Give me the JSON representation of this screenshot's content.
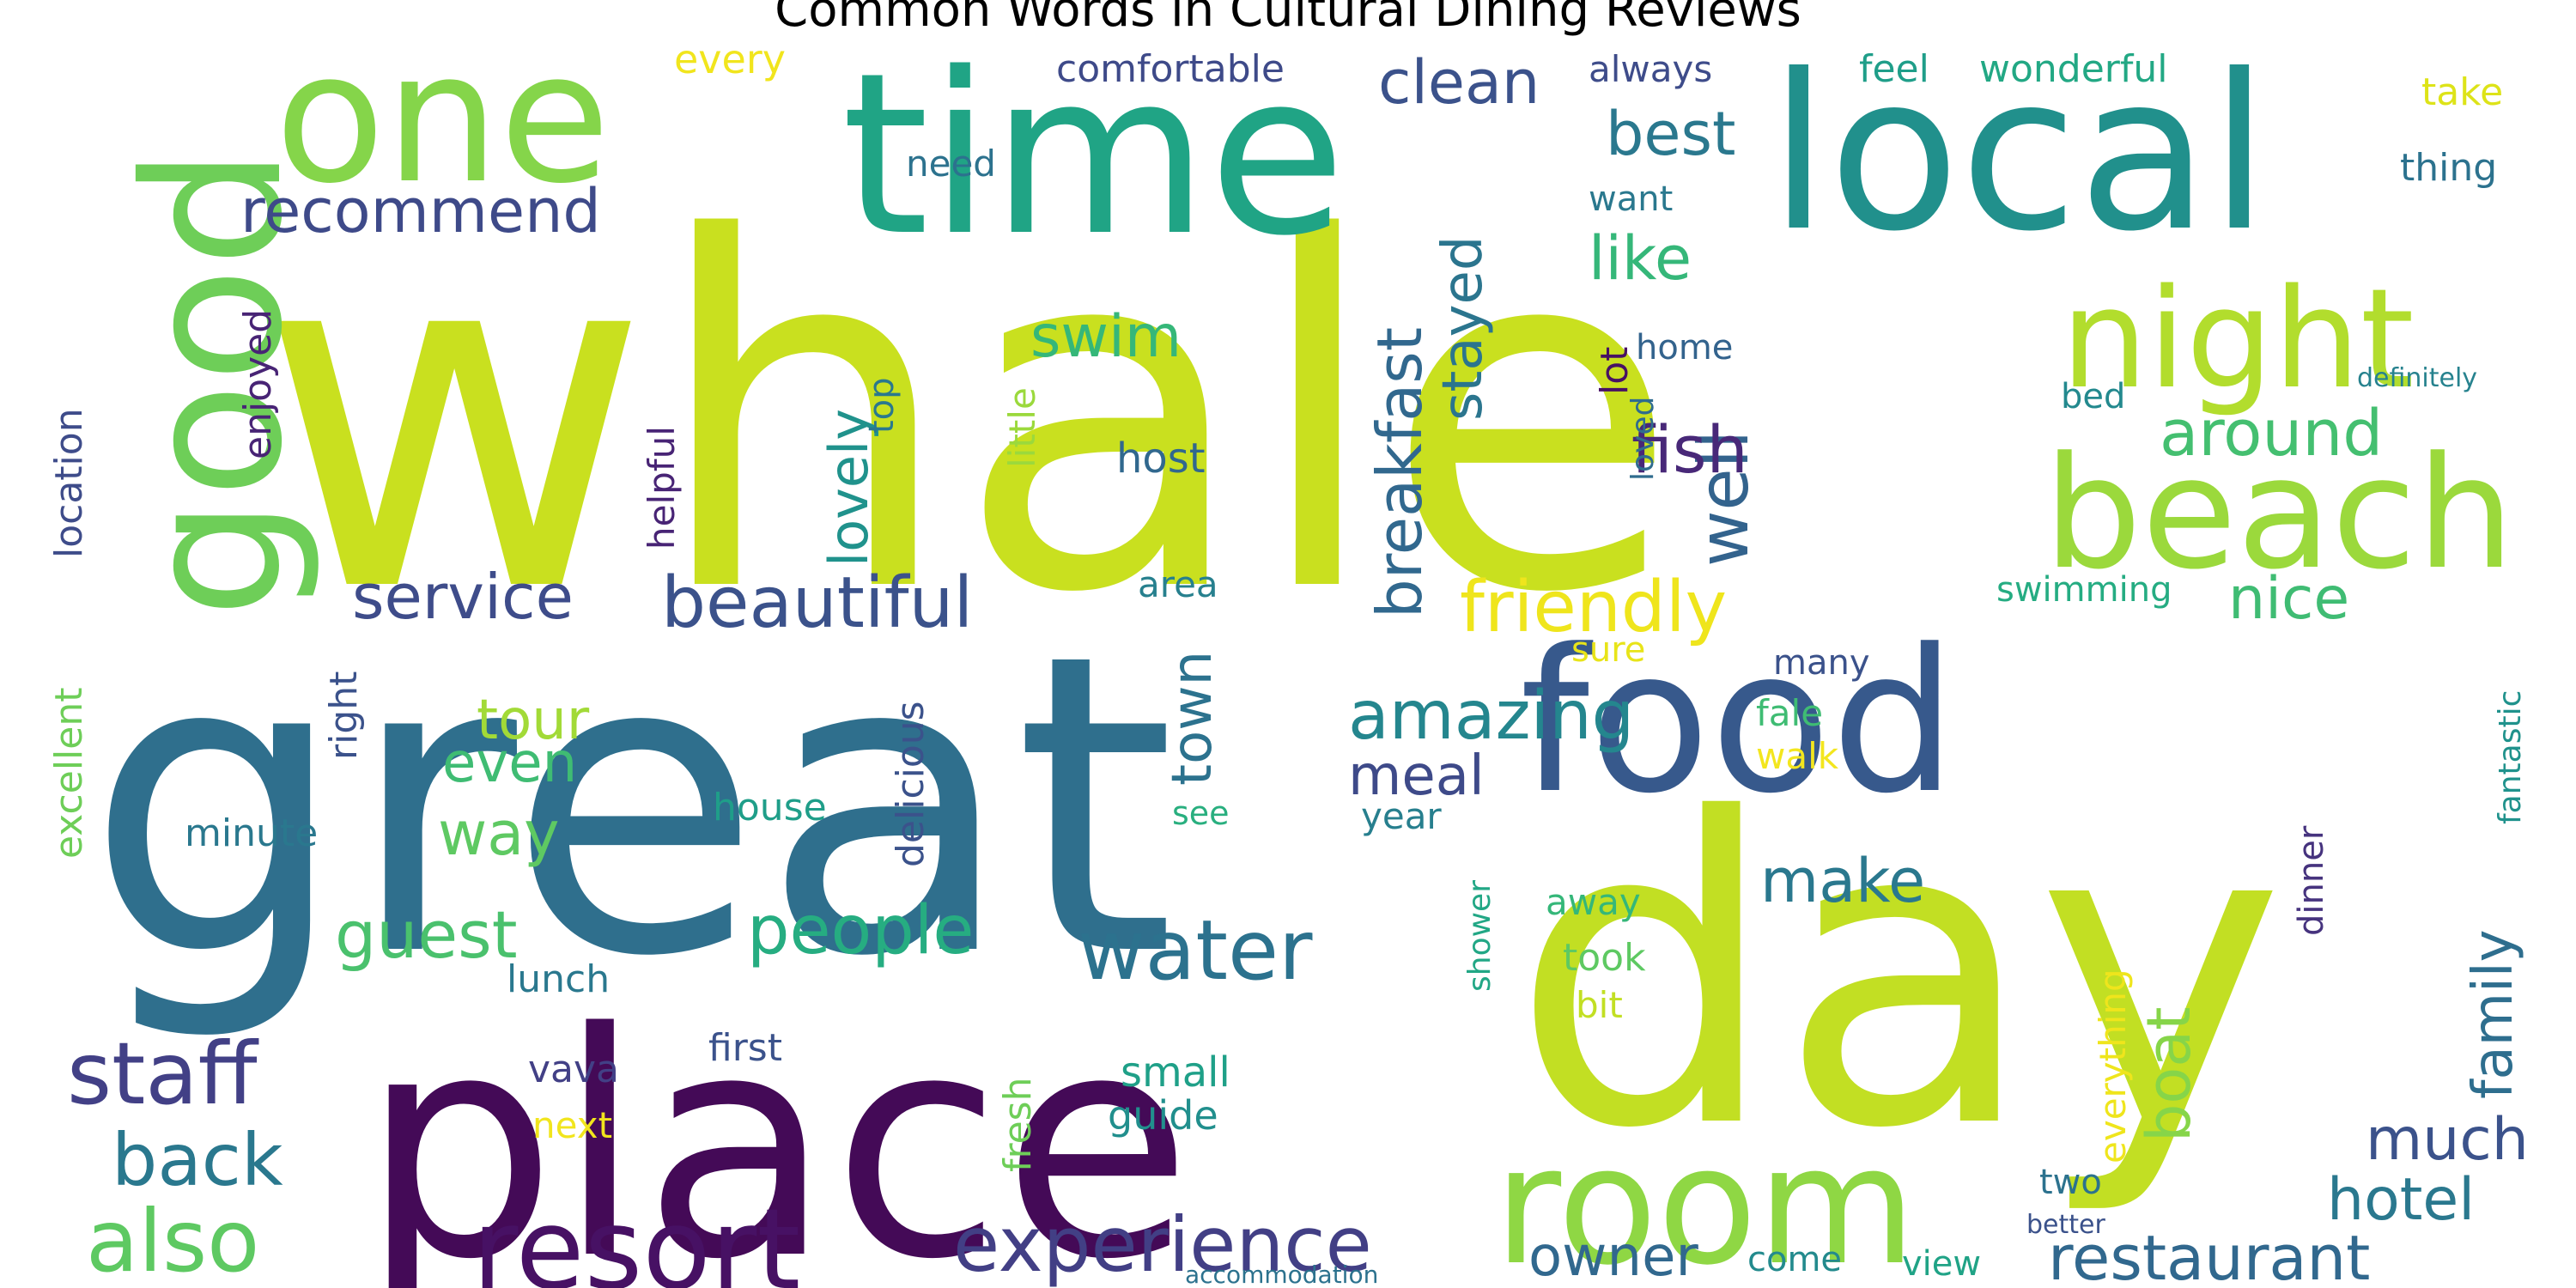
{
  "chart_data": {
    "type": "wordcloud",
    "title": "Common Words in Cultural Dining Reviews",
    "words": [
      {
        "text": "whale",
        "color": "#c9e01f"
      },
      {
        "text": "great",
        "color": "#2f6f8d"
      },
      {
        "text": "day",
        "color": "#c2df23"
      },
      {
        "text": "place",
        "color": "#440a57"
      },
      {
        "text": "time",
        "color": "#20a485"
      },
      {
        "text": "local",
        "color": "#21908c"
      },
      {
        "text": "food",
        "color": "#37598c"
      },
      {
        "text": "one",
        "color": "#85d54a"
      },
      {
        "text": "good",
        "color": "#6ece58"
      },
      {
        "text": "room",
        "color": "#8fd744"
      },
      {
        "text": "beach",
        "color": "#9bd93c"
      },
      {
        "text": "night",
        "color": "#b2dd2d"
      },
      {
        "text": "resort",
        "color": "#471164"
      },
      {
        "text": "experience",
        "color": "#423f85"
      },
      {
        "text": "friendly",
        "color": "#efe51c"
      },
      {
        "text": "beautiful",
        "color": "#3b528b"
      },
      {
        "text": "staff",
        "color": "#424086"
      },
      {
        "text": "water",
        "color": "#2c728e"
      },
      {
        "text": "people",
        "color": "#26ad81"
      },
      {
        "text": "restaurant",
        "color": "#31688e"
      },
      {
        "text": "also",
        "color": "#5ec962"
      },
      {
        "text": "back",
        "color": "#2a788e"
      },
      {
        "text": "breakfast",
        "color": "#31688e"
      },
      {
        "text": "amazing",
        "color": "#24868e"
      },
      {
        "text": "recommend",
        "color": "#3e4a89"
      },
      {
        "text": "service",
        "color": "#3e4c8a"
      },
      {
        "text": "clean",
        "color": "#3b528b"
      },
      {
        "text": "best",
        "color": "#2a788e"
      },
      {
        "text": "like",
        "color": "#35b779"
      },
      {
        "text": "well",
        "color": "#33638d"
      },
      {
        "text": "fish",
        "color": "#482878"
      },
      {
        "text": "around",
        "color": "#44bf70"
      },
      {
        "text": "nice",
        "color": "#3fbc73"
      },
      {
        "text": "family",
        "color": "#2e6e8e"
      },
      {
        "text": "stayed",
        "color": "#2b758e"
      },
      {
        "text": "lovely",
        "color": "#20928c"
      },
      {
        "text": "swim",
        "color": "#35b779"
      },
      {
        "text": "town",
        "color": "#2c728e"
      },
      {
        "text": "meal",
        "color": "#3e4a89"
      },
      {
        "text": "make",
        "color": "#2a788e"
      },
      {
        "text": "much",
        "color": "#3b528b"
      },
      {
        "text": "hotel",
        "color": "#2a788e"
      },
      {
        "text": "boat",
        "color": "#86d549"
      },
      {
        "text": "guest",
        "color": "#4ac16d"
      },
      {
        "text": "way",
        "color": "#5ec962"
      },
      {
        "text": "even",
        "color": "#3fbc73"
      },
      {
        "text": "tour",
        "color": "#a2da37"
      },
      {
        "text": "owner",
        "color": "#31688e"
      },
      {
        "text": "enjoyed",
        "color": "#482475"
      },
      {
        "text": "location",
        "color": "#3e4c8a"
      },
      {
        "text": "excellent",
        "color": "#6ece58"
      },
      {
        "text": "helpful",
        "color": "#482475"
      },
      {
        "text": "right",
        "color": "#3b528b"
      },
      {
        "text": "minute",
        "color": "#2a788e"
      },
      {
        "text": "house",
        "color": "#1f9e89"
      },
      {
        "text": "delicious",
        "color": "#3b528b"
      },
      {
        "text": "see",
        "color": "#29af7f"
      },
      {
        "text": "year",
        "color": "#277f8e"
      },
      {
        "text": "area",
        "color": "#27808e"
      },
      {
        "text": "host",
        "color": "#31688e"
      },
      {
        "text": "little",
        "color": "#9bd93c"
      },
      {
        "text": "top",
        "color": "#2a788e"
      },
      {
        "text": "need",
        "color": "#2c728e"
      },
      {
        "text": "comfortable",
        "color": "#3e4a89"
      },
      {
        "text": "every",
        "color": "#f1e51d"
      },
      {
        "text": "always",
        "color": "#3e4c8a"
      },
      {
        "text": "want",
        "color": "#2a788e"
      },
      {
        "text": "lot",
        "color": "#471164"
      },
      {
        "text": "home",
        "color": "#33638d"
      },
      {
        "text": "loved",
        "color": "#2f6c8e"
      },
      {
        "text": "feel",
        "color": "#1f9e89"
      },
      {
        "text": "wonderful",
        "color": "#22a884"
      },
      {
        "text": "take",
        "color": "#dde318"
      },
      {
        "text": "thing",
        "color": "#2c728e"
      },
      {
        "text": "bed",
        "color": "#23898e"
      },
      {
        "text": "definitely",
        "color": "#26828e"
      },
      {
        "text": "swimming",
        "color": "#25ac82"
      },
      {
        "text": "fantastic",
        "color": "#20928c"
      },
      {
        "text": "sure",
        "color": "#e8e419"
      },
      {
        "text": "fale",
        "color": "#3fbc73"
      },
      {
        "text": "walk",
        "color": "#f3e61e"
      },
      {
        "text": "many",
        "color": "#3b528b"
      },
      {
        "text": "dinner",
        "color": "#46337e"
      },
      {
        "text": "shower",
        "color": "#22a785"
      },
      {
        "text": "away",
        "color": "#35b779"
      },
      {
        "text": "took",
        "color": "#5ec962"
      },
      {
        "text": "bit",
        "color": "#c2df23"
      },
      {
        "text": "everything",
        "color": "#efe51c"
      },
      {
        "text": "lunch",
        "color": "#2a788e"
      },
      {
        "text": "vava",
        "color": "#424086"
      },
      {
        "text": "next",
        "color": "#f1e51d"
      },
      {
        "text": "first",
        "color": "#3b528b"
      },
      {
        "text": "fresh",
        "color": "#6ece58"
      },
      {
        "text": "small",
        "color": "#1fa088"
      },
      {
        "text": "guide",
        "color": "#218f8d"
      },
      {
        "text": "two",
        "color": "#2c728e"
      },
      {
        "text": "view",
        "color": "#20a386"
      },
      {
        "text": "come",
        "color": "#238a8d"
      },
      {
        "text": "better",
        "color": "#3b528b"
      },
      {
        "text": "accommodation",
        "color": "#2c728e"
      }
    ]
  }
}
